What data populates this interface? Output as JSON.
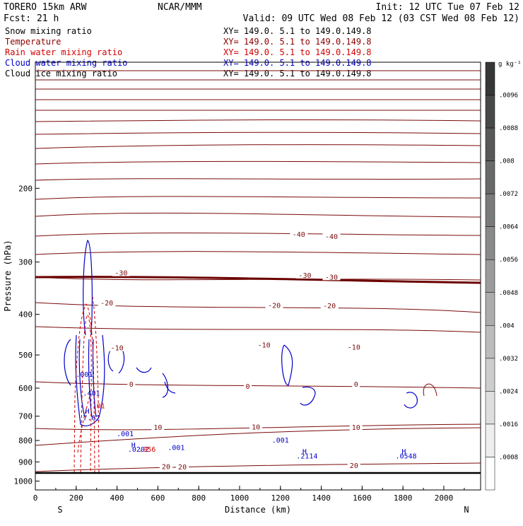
{
  "header": {
    "model_left": "TORERO  15km ARW",
    "center": "NCAR/MMM",
    "init": "Init: 12 UTC Tue 07 Feb 12",
    "fcst": "Fcst:   21 h",
    "valid": "Valid: 09 UTC Wed 08 Feb 12 (03 CST Wed 08 Feb 12)"
  },
  "legend": [
    {
      "label": "Snow mixing ratio",
      "xy": "XY= 149.0.  5.1 to 149.0.149.8",
      "color": "#000000"
    },
    {
      "label": "Temperature",
      "xy": "XY= 149.0.  5.1 to 149.0.149.8",
      "color": "#8b0000"
    },
    {
      "label": "Rain water mixing ratio",
      "xy": "XY= 149.0.  5.1 to 149.0.149.8",
      "color": "#d40000"
    },
    {
      "label": "Cloud water mixing ratio",
      "xy": "XY= 149.0.  5.1 to 149.0.149.8",
      "color": "#0000c8"
    },
    {
      "label": "Cloud ice mixing ratio",
      "xy": "XY= 149.0.  5.1 to 149.0.149.8",
      "color": "#000000"
    }
  ],
  "chart_data": {
    "type": "contour",
    "xlabel": "Distance (km)",
    "ylabel": "Pressure (hPa)",
    "xlim": [
      0,
      2180
    ],
    "ylim": [
      1050,
      100
    ],
    "x_ticks": [
      0,
      200,
      400,
      600,
      800,
      1000,
      1200,
      1400,
      1600,
      1800,
      2000
    ],
    "y_ticks": [
      200,
      300,
      400,
      500,
      600,
      700,
      800,
      900,
      1000
    ],
    "left_end_label": "S",
    "right_end_label": "N",
    "colorbar": {
      "unit": "g kg⁻¹",
      "ticks": [
        ".0096",
        ".0088",
        ".008",
        ".0072",
        ".0064",
        ".0056",
        ".0048",
        ".004",
        ".0032",
        ".0024",
        ".0016",
        ".0008"
      ]
    },
    "temperature_labels": [
      {
        "text": "-40",
        "x": 1290,
        "p": 257
      },
      {
        "text": "-40",
        "x": 1450,
        "p": 260
      },
      {
        "text": "-30",
        "x": 420,
        "p": 318
      },
      {
        "text": "-30",
        "x": 1320,
        "p": 322
      },
      {
        "text": "-30",
        "x": 1450,
        "p": 325
      },
      {
        "text": "-20",
        "x": 350,
        "p": 375
      },
      {
        "text": "-20",
        "x": 1170,
        "p": 380
      },
      {
        "text": "-20",
        "x": 1440,
        "p": 381
      },
      {
        "text": "-10",
        "x": 400,
        "p": 480
      },
      {
        "text": "-10",
        "x": 1120,
        "p": 472
      },
      {
        "text": "-10",
        "x": 1560,
        "p": 478
      },
      {
        "text": "0",
        "x": 470,
        "p": 586
      },
      {
        "text": "0",
        "x": 1040,
        "p": 593
      },
      {
        "text": "0",
        "x": 1570,
        "p": 586
      },
      {
        "text": "10",
        "x": 600,
        "p": 743
      },
      {
        "text": "10",
        "x": 1080,
        "p": 742
      },
      {
        "text": "10",
        "x": 1570,
        "p": 743
      },
      {
        "text": "20",
        "x": 640,
        "p": 922
      },
      {
        "text": "20",
        "x": 720,
        "p": 923
      },
      {
        "text": "20",
        "x": 1560,
        "p": 917
      }
    ],
    "moisture_labels": [
      {
        "text": ".001",
        "x": 240,
        "p": 555,
        "color": "#0000c8"
      },
      {
        "text": ".401",
        "x": 275,
        "p": 615,
        "color": "#0000c8"
      },
      {
        "text": ".01",
        "x": 310,
        "p": 660,
        "color": "#d40000"
      },
      {
        "text": "H",
        "x": 255,
        "p": 680,
        "color": "#0000c8"
      },
      {
        "text": "7.62",
        "x": 275,
        "p": 705,
        "color": "#0000c8"
      },
      {
        "text": ".001",
        "x": 440,
        "p": 770,
        "color": "#0000c8"
      },
      {
        "text": "H",
        "x": 480,
        "p": 818,
        "color": "#0000c8"
      },
      {
        "text": ".0202",
        "x": 505,
        "p": 838,
        "color": "#0000c8"
      },
      {
        "text": ".056",
        "x": 548,
        "p": 838,
        "color": "#d40000"
      },
      {
        "text": ".001",
        "x": 690,
        "p": 830,
        "color": "#0000c8"
      },
      {
        "text": ".001",
        "x": 1200,
        "p": 797,
        "color": "#0000c8"
      },
      {
        "text": "H",
        "x": 1318,
        "p": 848,
        "color": "#0000c8"
      },
      {
        "text": ".2114",
        "x": 1330,
        "p": 870,
        "color": "#0000c8"
      },
      {
        "text": "H",
        "x": 1804,
        "p": 848,
        "color": "#0000c8"
      },
      {
        "text": ".0548",
        "x": 1815,
        "p": 870,
        "color": "#0000c8"
      }
    ]
  }
}
